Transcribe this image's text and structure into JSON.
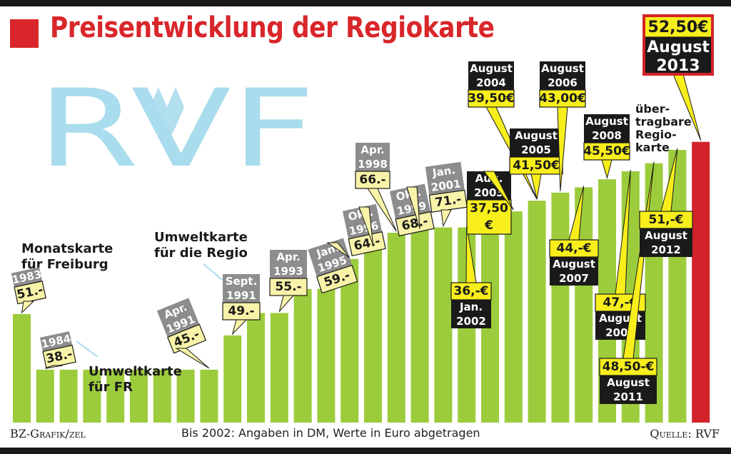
{
  "title": "Preisentwicklung der Regiokarte",
  "logo": {
    "text": "RVF",
    "color": "#a9dcec"
  },
  "footer": {
    "credit": "BZ-Grafik/zel",
    "note": "Bis 2002: Angaben in DM, Werte in Euro abgetragen",
    "source": "Quelle: RVF"
  },
  "colors": {
    "bar": "#9ccc3b",
    "highlight_bar": "#d2232a",
    "title": "#d9262a",
    "callout_yellow": "#f7ee1c",
    "callout_pale": "#f8f3a8",
    "tag_gray": "#8d8d8d",
    "tag_black": "#1a1a1a"
  },
  "chart_data": {
    "type": "bar",
    "ylim": [
      0,
      55
    ],
    "values": [
      20.3,
      9.9,
      9.9,
      9.9,
      9.9,
      9.9,
      9.9,
      9.9,
      9.9,
      16.3,
      20.5,
      20.5,
      25.0,
      25.0,
      30.6,
      33.0,
      35.5,
      36.0,
      36.5,
      36.5,
      37.5,
      39.5,
      41.5,
      43.0,
      44.0,
      45.5,
      47.0,
      48.5,
      51.0,
      52.5
    ],
    "highlight_index": 29,
    "annotations": [
      {
        "top": "1983",
        "value": "51.-",
        "note": "Monatskarte für Freiburg"
      },
      {
        "top": "1984",
        "value": "38.-",
        "note": "Umweltkarte für FR"
      },
      {
        "top": "Apr. 1991",
        "value": "45.-"
      },
      {
        "top": "Sept. 1991",
        "value": "49.-",
        "note": "Umweltkarte für die Regio"
      },
      {
        "top": "Apr. 1993",
        "value": "55.-"
      },
      {
        "top": "Jan. 1995",
        "value": "59.-"
      },
      {
        "top": "Okt. 1996",
        "value": "64.-"
      },
      {
        "top": "Apr. 1998",
        "value": "66.-"
      },
      {
        "top": "Okt. 1999",
        "value": "68.-"
      },
      {
        "top": "Jan. 2001",
        "value": "71.-"
      },
      {
        "value": "36,-€",
        "bottom": "Jan. 2002"
      },
      {
        "top": "Aug. 2003",
        "value": "37,50 €"
      },
      {
        "top": "August 2004",
        "value": "39,50€"
      },
      {
        "top": "August 2005",
        "value": "41,50€"
      },
      {
        "top": "August 2006",
        "value": "43,00€"
      },
      {
        "value": "44,-€",
        "bottom": "August 2007"
      },
      {
        "top": "August 2008",
        "value": "45,50€"
      },
      {
        "value": "47,-€",
        "bottom": "August 2009"
      },
      {
        "value": "48,50-€",
        "bottom": "August 2011"
      },
      {
        "value": "51,-€",
        "bottom": "August 2012"
      },
      {
        "value": "52,50€",
        "bottom": "August 2013",
        "note": "übertragbare Regio-karte"
      }
    ]
  }
}
